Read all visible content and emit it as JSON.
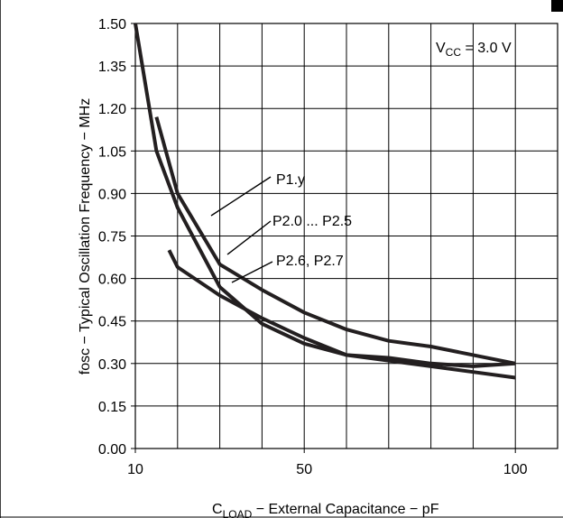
{
  "chart_data": {
    "type": "line",
    "title": "",
    "xlabel": {
      "prefix": "C",
      "sub": "LOAD",
      "rest": " − External Capacitance − pF"
    },
    "ylabel": "fosc − Typical Oscillation Frequency − MHz",
    "xlim": [
      10,
      110
    ],
    "ylim": [
      0,
      1.5
    ],
    "x_ticks": [
      10,
      50,
      100
    ],
    "x_tick_labels": [
      "10",
      "50",
      "100"
    ],
    "y_ticks": [
      0,
      0.15,
      0.3,
      0.45,
      0.6,
      0.75,
      0.9,
      1.05,
      1.2,
      1.35,
      1.5
    ],
    "y_tick_labels": [
      "0.00",
      "0.15",
      "0.30",
      "0.45",
      "0.60",
      "0.75",
      "0.90",
      "1.05",
      "1.20",
      "1.35",
      "1.50"
    ],
    "x_grid_step": 10,
    "grid": true,
    "series": [
      {
        "name": "P1.y",
        "x": [
          10,
          15,
          20,
          30,
          40,
          50,
          60,
          70,
          80,
          90,
          100
        ],
        "y": [
          1.5,
          1.05,
          0.85,
          0.57,
          0.44,
          0.37,
          0.33,
          0.32,
          0.3,
          0.29,
          0.3
        ]
      },
      {
        "name": "P2.0 ... P2.5",
        "x": [
          15,
          20,
          30,
          40,
          50,
          60,
          70,
          80,
          90,
          100
        ],
        "y": [
          1.17,
          0.9,
          0.65,
          0.56,
          0.48,
          0.42,
          0.38,
          0.36,
          0.33,
          0.3
        ]
      },
      {
        "name": "P2.6, P2.7",
        "x": [
          18,
          20,
          30,
          40,
          50,
          60,
          70,
          80,
          90,
          100
        ],
        "y": [
          0.7,
          0.64,
          0.54,
          0.46,
          0.39,
          0.33,
          0.31,
          0.29,
          0.27,
          0.25
        ]
      }
    ],
    "annotations": {
      "vcc": {
        "prefix": "V",
        "sub": "CC",
        "rest": " = 3.0 V"
      }
    }
  }
}
